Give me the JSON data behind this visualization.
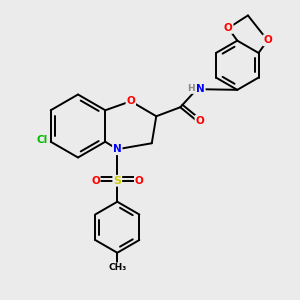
{
  "background_color": "#ebebeb",
  "bond_color": "#000000",
  "atom_colors": {
    "O": "#ff0000",
    "N": "#0000ff",
    "S": "#cccc00",
    "Cl": "#00bb00",
    "H": "#888888",
    "C": "#000000"
  },
  "figsize": [
    3.0,
    3.0
  ],
  "dpi": 100,
  "xlim": [
    0,
    10
  ],
  "ylim": [
    0,
    10
  ]
}
